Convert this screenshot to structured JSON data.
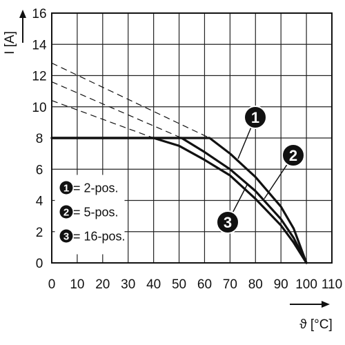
{
  "chart_data": {
    "type": "line",
    "xlabel": "ϑ [°C]",
    "ylabel": "I [A]",
    "xlim": [
      0,
      110
    ],
    "ylim": [
      0,
      16
    ],
    "x_ticks": [
      0,
      10,
      20,
      30,
      40,
      50,
      60,
      70,
      80,
      90,
      100,
      110
    ],
    "y_ticks": [
      0,
      2,
      4,
      6,
      8,
      10,
      12,
      14,
      16
    ],
    "grid": true,
    "legend_position": "bottom-left",
    "series": [
      {
        "name": "2-pos.",
        "marker": "1",
        "points": [
          [
            0,
            8
          ],
          [
            62,
            8
          ],
          [
            70,
            7.0
          ],
          [
            80,
            5.5
          ],
          [
            90,
            3.6
          ],
          [
            95,
            2.2
          ],
          [
            100,
            0
          ]
        ],
        "extrapolation": [
          [
            0,
            12.8
          ],
          [
            62,
            8
          ]
        ]
      },
      {
        "name": "5-pos.",
        "marker": "2",
        "points": [
          [
            0,
            8
          ],
          [
            51,
            8
          ],
          [
            60,
            7.1
          ],
          [
            70,
            6.0
          ],
          [
            80,
            4.6
          ],
          [
            90,
            2.8
          ],
          [
            95,
            1.6
          ],
          [
            100,
            0
          ]
        ],
        "extrapolation": [
          [
            0,
            11.6
          ],
          [
            51,
            8
          ]
        ]
      },
      {
        "name": "16-pos.",
        "marker": "3",
        "points": [
          [
            0,
            8
          ],
          [
            40,
            8
          ],
          [
            50,
            7.5
          ],
          [
            60,
            6.6
          ],
          [
            70,
            5.6
          ],
          [
            80,
            4.1
          ],
          [
            90,
            2.4
          ],
          [
            95,
            1.3
          ],
          [
            100,
            0
          ]
        ],
        "extrapolation": [
          [
            0,
            10.4
          ],
          [
            40,
            8
          ]
        ]
      }
    ]
  }
}
